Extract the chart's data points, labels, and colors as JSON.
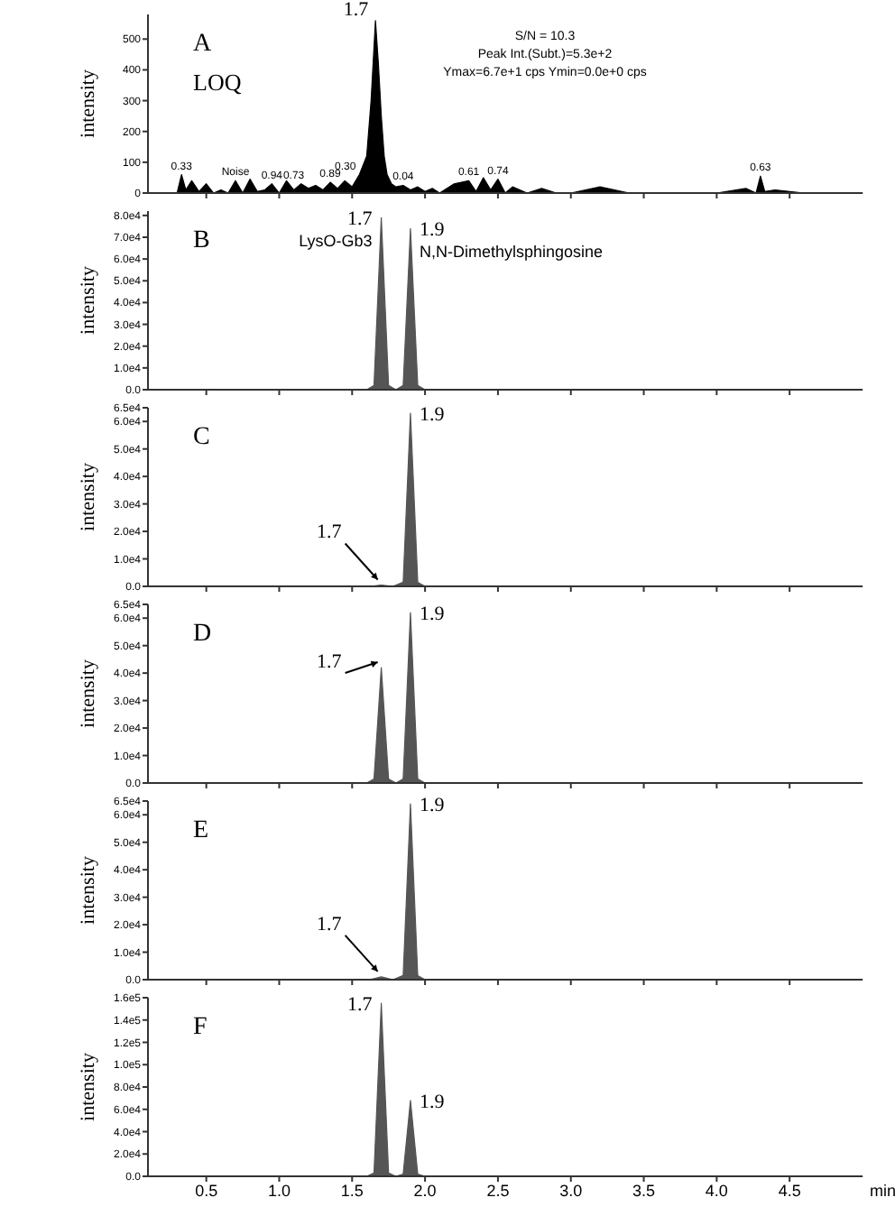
{
  "chart_data": [
    {
      "type": "area",
      "title": "A",
      "ylabel": "intensity",
      "tick_labels": "y",
      "xlim": [
        0.1,
        5.0
      ],
      "xticks": [
        0.5,
        1,
        1.5,
        2,
        2.5,
        3,
        3.5,
        4,
        4.5
      ],
      "ylim": [
        0,
        580
      ],
      "yticks": [
        0,
        100,
        200,
        300,
        400,
        500
      ],
      "color": "#000000",
      "x": [
        0.1,
        0.3,
        0.33,
        0.36,
        0.4,
        0.45,
        0.5,
        0.55,
        0.6,
        0.65,
        0.7,
        0.75,
        0.8,
        0.85,
        0.9,
        0.95,
        1.0,
        1.05,
        1.1,
        1.15,
        1.2,
        1.25,
        1.3,
        1.35,
        1.4,
        1.45,
        1.5,
        1.55,
        1.6,
        1.63,
        1.66,
        1.68,
        1.7,
        1.72,
        1.74,
        1.77,
        1.8,
        1.85,
        1.9,
        1.95,
        2.0,
        2.05,
        2.1,
        2.2,
        2.3,
        2.35,
        2.4,
        2.45,
        2.5,
        2.55,
        2.6,
        2.7,
        2.8,
        2.9,
        3.0,
        3.2,
        3.4,
        3.6,
        3.8,
        4.0,
        4.2,
        4.27,
        4.3,
        4.33,
        4.4,
        4.6,
        4.8,
        5.0
      ],
      "values": [
        0,
        0,
        60,
        10,
        40,
        5,
        30,
        0,
        10,
        0,
        40,
        0,
        45,
        5,
        10,
        30,
        0,
        40,
        10,
        30,
        15,
        25,
        10,
        35,
        15,
        40,
        20,
        60,
        120,
        300,
        560,
        420,
        250,
        120,
        60,
        30,
        20,
        25,
        10,
        20,
        5,
        15,
        0,
        30,
        40,
        5,
        50,
        10,
        45,
        0,
        20,
        0,
        15,
        0,
        0,
        20,
        0,
        0,
        0,
        0,
        15,
        0,
        55,
        5,
        10,
        0,
        0,
        0
      ],
      "annotations": [
        "LOQ",
        "S/N = 10.3",
        "Peak Int.(Subt.)=5.3e+2",
        "Ymax=6.7e+1 cps  Ymin=0.0e+0 cps",
        {
          "text": "1.7",
          "x": 1.66,
          "y": 560
        },
        {
          "text": "0.33",
          "x": 0.33,
          "y": 60
        },
        {
          "text": "Noise",
          "x": 0.7,
          "y": 40
        },
        {
          "text": "0.94",
          "x": 0.95,
          "y": 30
        },
        {
          "text": "0.73",
          "x": 1.1,
          "y": 30
        },
        {
          "text": "0.89",
          "x": 1.35,
          "y": 35
        },
        {
          "text": "0.30",
          "x": 1.55,
          "y": 60
        },
        {
          "text": "0.04",
          "x": 1.85,
          "y": 25
        },
        {
          "text": "0.61",
          "x": 2.3,
          "y": 40
        },
        {
          "text": "0.74",
          "x": 2.5,
          "y": 45
        },
        {
          "text": "0.63",
          "x": 4.3,
          "y": 55
        }
      ]
    },
    {
      "type": "area",
      "title": "B",
      "ylabel": "intensity",
      "tick_labels": "y",
      "xlim": [
        0.1,
        5.0
      ],
      "xticks": [
        0.5,
        1,
        1.5,
        2,
        2.5,
        3,
        3.5,
        4,
        4.5
      ],
      "ylim": [
        0,
        82000
      ],
      "yticks": [
        {
          "value": 0,
          "label": "0.0"
        },
        {
          "value": 10000,
          "label": "1.0e4"
        },
        {
          "value": 20000,
          "label": "2.0e4"
        },
        {
          "value": 30000,
          "label": "3.0e4"
        },
        {
          "value": 40000,
          "label": "4.0e4"
        },
        {
          "value": 50000,
          "label": "5.0e4"
        },
        {
          "value": 60000,
          "label": "6.0e4"
        },
        {
          "value": 70000,
          "label": "7.0e4"
        },
        {
          "value": 80000,
          "label": "8.0e4"
        }
      ],
      "color": "#555555",
      "x": [
        0.1,
        1.6,
        1.65,
        1.7,
        1.75,
        1.8,
        1.85,
        1.9,
        1.95,
        2.0,
        5.0
      ],
      "values": [
        0,
        0,
        2000,
        79000,
        2000,
        0,
        2000,
        74000,
        2000,
        0,
        0
      ],
      "annotations": [
        {
          "text": "1.7",
          "x": 1.7,
          "y": 79000
        },
        {
          "text": "LysO-Gb3",
          "x": 1.7,
          "y": 79000
        },
        {
          "text": "1.9",
          "x": 1.9,
          "y": 74000
        },
        {
          "text": "N,N-Dimethylsphingosine",
          "x": 1.9,
          "y": 74000
        }
      ]
    },
    {
      "type": "area",
      "title": "C",
      "ylabel": "intensity",
      "tick_labels": "y",
      "xlim": [
        0.1,
        5.0
      ],
      "xticks": [
        0.5,
        1,
        1.5,
        2,
        2.5,
        3,
        3.5,
        4,
        4.5
      ],
      "ylim": [
        0,
        65000
      ],
      "yticks": [
        {
          "value": 0,
          "label": "0.0"
        },
        {
          "value": 10000,
          "label": "1.0e4"
        },
        {
          "value": 20000,
          "label": "2.0e4"
        },
        {
          "value": 30000,
          "label": "3.0e4"
        },
        {
          "value": 40000,
          "label": "4.0e4"
        },
        {
          "value": 50000,
          "label": "5.0e4"
        },
        {
          "value": 60000,
          "label": "6.0e4"
        },
        {
          "value": 65000,
          "label": "6.5e4"
        }
      ],
      "color": "#555555",
      "x": [
        0.1,
        1.62,
        1.7,
        1.78,
        1.85,
        1.9,
        1.95,
        2.0,
        5.0
      ],
      "values": [
        0,
        0,
        500,
        0,
        1500,
        63000,
        1500,
        0,
        0
      ],
      "annotations": [
        {
          "text": "1.7",
          "x": 1.7,
          "y": 500
        },
        {
          "text": "1.9",
          "x": 1.9,
          "y": 63000
        }
      ]
    },
    {
      "type": "area",
      "title": "D",
      "ylabel": "intensity",
      "tick_labels": "y",
      "xlim": [
        0.1,
        5.0
      ],
      "xticks": [
        0.5,
        1,
        1.5,
        2,
        2.5,
        3,
        3.5,
        4,
        4.5
      ],
      "ylim": [
        0,
        65000
      ],
      "yticks": [
        {
          "value": 0,
          "label": "0.0"
        },
        {
          "value": 10000,
          "label": "1.0e4"
        },
        {
          "value": 20000,
          "label": "2.0e4"
        },
        {
          "value": 30000,
          "label": "3.0e4"
        },
        {
          "value": 40000,
          "label": "4.0e4"
        },
        {
          "value": 50000,
          "label": "5.0e4"
        },
        {
          "value": 60000,
          "label": "6.0e4"
        },
        {
          "value": 65000,
          "label": "6.5e4"
        }
      ],
      "color": "#555555",
      "x": [
        0.1,
        1.6,
        1.65,
        1.7,
        1.75,
        1.8,
        1.85,
        1.9,
        1.95,
        2.0,
        5.0
      ],
      "values": [
        0,
        0,
        1500,
        42000,
        1500,
        0,
        1500,
        62000,
        1500,
        0,
        0
      ],
      "annotations": [
        {
          "text": "1.7",
          "x": 1.7,
          "y": 42000
        },
        {
          "text": "1.9",
          "x": 1.9,
          "y": 62000
        }
      ]
    },
    {
      "type": "area",
      "title": "E",
      "ylabel": "intensity",
      "tick_labels": "y",
      "xlim": [
        0.1,
        5.0
      ],
      "xticks": [
        0.5,
        1,
        1.5,
        2,
        2.5,
        3,
        3.5,
        4,
        4.5
      ],
      "ylim": [
        0,
        65000
      ],
      "yticks": [
        {
          "value": 0,
          "label": "0.0"
        },
        {
          "value": 10000,
          "label": "1.0e4"
        },
        {
          "value": 20000,
          "label": "2.0e4"
        },
        {
          "value": 30000,
          "label": "3.0e4"
        },
        {
          "value": 40000,
          "label": "4.0e4"
        },
        {
          "value": 50000,
          "label": "5.0e4"
        },
        {
          "value": 60000,
          "label": "6.0e4"
        },
        {
          "value": 65000,
          "label": "6.5e4"
        }
      ],
      "color": "#555555",
      "x": [
        0.1,
        1.62,
        1.7,
        1.78,
        1.85,
        1.9,
        1.95,
        2.0,
        5.0
      ],
      "values": [
        0,
        0,
        1000,
        0,
        1500,
        64000,
        1500,
        0,
        0
      ],
      "annotations": [
        {
          "text": "1.7",
          "x": 1.7,
          "y": 1000
        },
        {
          "text": "1.9",
          "x": 1.9,
          "y": 64000
        }
      ]
    },
    {
      "type": "area",
      "title": "F",
      "ylabel": "intensity",
      "xlabel": "min",
      "xlim": [
        0.1,
        5.0
      ],
      "xticks": [
        0.5,
        {
          "value": 1,
          "label": "1.0"
        },
        1.5,
        {
          "value": 2,
          "label": "2.0"
        },
        2.5,
        {
          "value": 3,
          "label": "3.0"
        },
        3.5,
        {
          "value": 4,
          "label": "4.0"
        },
        4.5
      ],
      "ylim": [
        0,
        160000
      ],
      "yticks": [
        {
          "value": 0,
          "label": "0.0"
        },
        {
          "value": 20000,
          "label": "2.0e4"
        },
        {
          "value": 40000,
          "label": "4.0e4"
        },
        {
          "value": 60000,
          "label": "6.0e4"
        },
        {
          "value": 80000,
          "label": "8.0e4"
        },
        {
          "value": 100000,
          "label": "1.0e5"
        },
        {
          "value": 120000,
          "label": "1.2e5"
        },
        {
          "value": 140000,
          "label": "1.4e5"
        },
        {
          "value": 160000,
          "label": "1.6e5"
        }
      ],
      "color": "#555555",
      "x": [
        0.1,
        1.6,
        1.65,
        1.7,
        1.75,
        1.8,
        1.85,
        1.9,
        1.95,
        2.0,
        5.0
      ],
      "values": [
        0,
        0,
        3000,
        155000,
        3000,
        0,
        2000,
        68000,
        2000,
        0,
        0
      ],
      "annotations": [
        {
          "text": "1.7",
          "x": 1.7,
          "y": 155000
        },
        {
          "text": "1.9",
          "x": 1.9,
          "y": 68000
        }
      ]
    }
  ]
}
